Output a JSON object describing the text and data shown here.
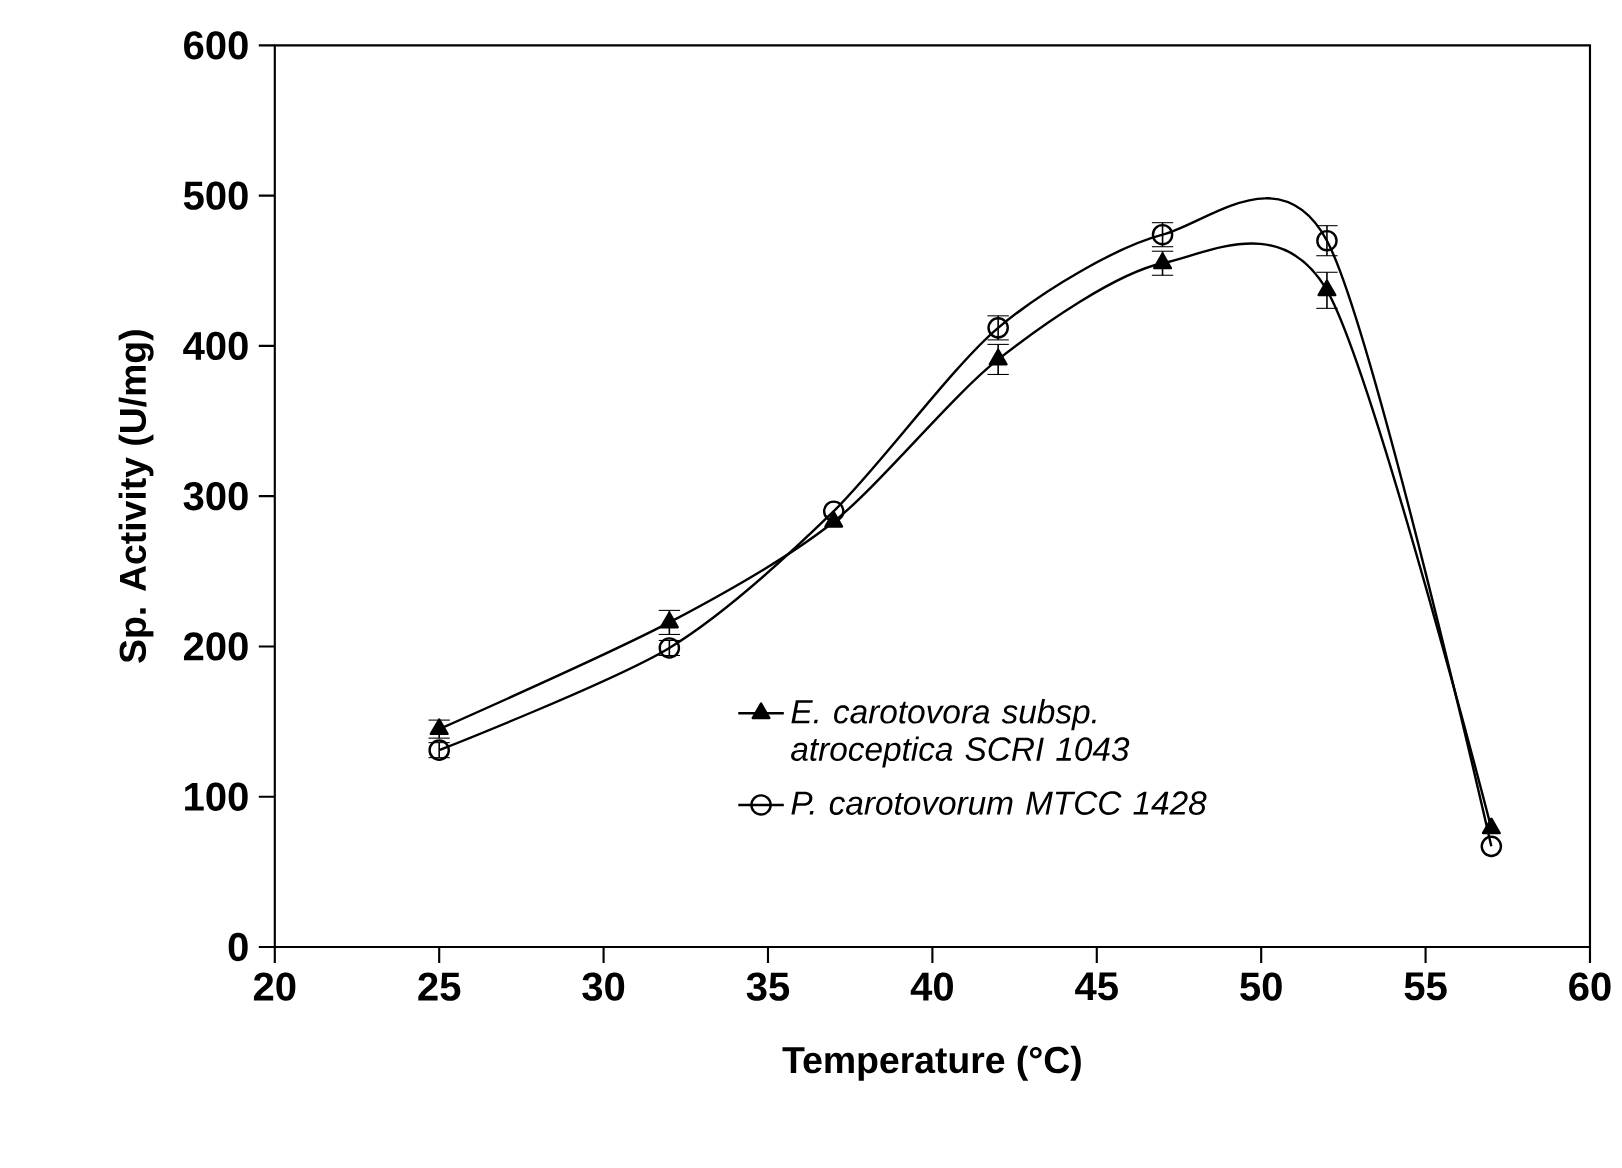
{
  "chart_data": {
    "type": "line",
    "xlabel": "Temperature (°C)",
    "ylabel": "Sp. Activity (U/mg)",
    "x": [
      25,
      32,
      37,
      42,
      47,
      52,
      57
    ],
    "series": [
      {
        "name": "E. carotovora subsp. atroceptica SCRI 1043",
        "color": "#000000",
        "marker": "triangle",
        "values": [
          145,
          216,
          283,
          391,
          455,
          437,
          79
        ],
        "errors": [
          6,
          8,
          null,
          10,
          8,
          12,
          null
        ]
      },
      {
        "name": "P. carotovorum MTCC 1428",
        "color": "#000000",
        "marker": "circle",
        "values": [
          131,
          199,
          290,
          412,
          474,
          470,
          67
        ],
        "errors": [
          5,
          5,
          null,
          8,
          8,
          10,
          null
        ]
      }
    ],
    "xlim": [
      20,
      60
    ],
    "xticks": [
      20,
      25,
      30,
      35,
      40,
      45,
      50,
      55,
      60
    ],
    "ylim": [
      0,
      600
    ],
    "yticks": [
      0,
      100,
      200,
      300,
      400,
      500,
      600
    ],
    "legend": "bottom right",
    "grid": false,
    "line_style": "solid"
  }
}
